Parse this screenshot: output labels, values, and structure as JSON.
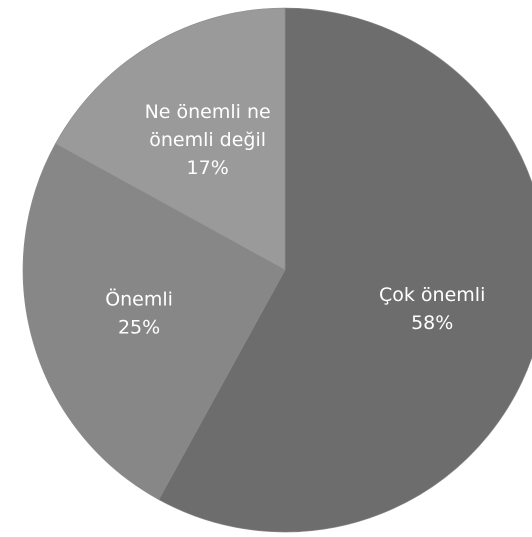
{
  "chart_data": {
    "type": "pie",
    "title": "",
    "start_angle_deg": 0,
    "direction": "clockwise",
    "slices": [
      {
        "label": "Çok önemli",
        "label_lines": [
          "Çok önemli"
        ],
        "value": 58,
        "value_label": "58%",
        "color": "#6d6d6d"
      },
      {
        "label": "Önemli",
        "label_lines": [
          "Önemli"
        ],
        "value": 25,
        "value_label": "25%",
        "color": "#878787"
      },
      {
        "label": "Ne önemli ne önemli değil",
        "label_lines": [
          "Ne önemli ne",
          "önemli değil"
        ],
        "value": 17,
        "value_label": "17%",
        "color": "#9a9a9a"
      }
    ]
  }
}
